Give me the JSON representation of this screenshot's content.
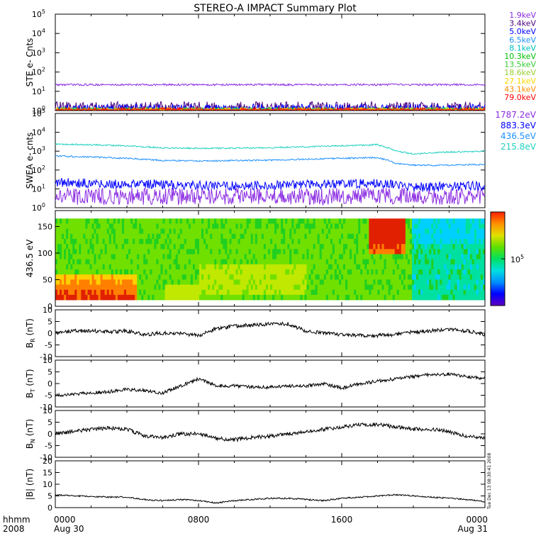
{
  "title": "STEREO-A IMPACT Summary Plot",
  "time_axis": {
    "label_top": "hhmm",
    "label_bottom": "2008",
    "ticks": [
      {
        "t": 0,
        "top": "0000",
        "bottom": "Aug 30"
      },
      {
        "t": 8,
        "top": "0800",
        "bottom": ""
      },
      {
        "t": 16,
        "top": "1600",
        "bottom": ""
      },
      {
        "t": 24,
        "top": "0000",
        "bottom": "Aug 31"
      }
    ]
  },
  "side_stamp": "Tue Dec 13 08:30:41 2008",
  "chart_data": [
    {
      "type": "line",
      "panel": "ste",
      "ylabel": "STE e- Cnts",
      "yscale": "log",
      "ylim": [
        1,
        100000
      ],
      "yticks": [
        {
          "v": 1,
          "base": "10",
          "exp": "0"
        },
        {
          "v": 10,
          "base": "10",
          "exp": "1"
        },
        {
          "v": 100,
          "base": "10",
          "exp": "2"
        },
        {
          "v": 1000,
          "base": "10",
          "exp": "3"
        },
        {
          "v": 10000,
          "base": "10",
          "exp": "4"
        },
        {
          "v": 100000,
          "base": "10",
          "exp": "5"
        }
      ],
      "legend_position": "right",
      "series": [
        {
          "name": "1.9keV",
          "color": "#8a2be2",
          "level": 22,
          "noise": 0.05
        },
        {
          "name": "3.4keV",
          "color": "#4b0082",
          "level": 1.3,
          "noise": 0.35
        },
        {
          "name": "5.0keV",
          "color": "#0000ff",
          "level": 1.1,
          "noise": 0.3
        },
        {
          "name": "6.5keV",
          "color": "#1e90ff",
          "level": 0.9,
          "noise": 0.2
        },
        {
          "name": "8.1keV",
          "color": "#00bfbf",
          "level": 0.9,
          "noise": 0.2
        },
        {
          "name": "10.3keV",
          "color": "#00c000",
          "level": 0.9,
          "noise": 0.2
        },
        {
          "name": "13.5keV",
          "color": "#32cd32",
          "level": 0.9,
          "noise": 0.2
        },
        {
          "name": "18.6keV",
          "color": "#9acd32",
          "level": 0.9,
          "noise": 0.2
        },
        {
          "name": "27.1keV",
          "color": "#ffd700",
          "level": 0.9,
          "noise": 0.2
        },
        {
          "name": "43.1keV",
          "color": "#ff8c00",
          "level": 0.9,
          "noise": 0.2
        },
        {
          "name": "79.0keV",
          "color": "#ff0000",
          "level": 0.9,
          "noise": 0.2
        }
      ]
    },
    {
      "type": "line",
      "panel": "swea",
      "ylabel": "SWEA e- cnts",
      "yscale": "log",
      "ylim": [
        1,
        100000
      ],
      "yticks": [
        {
          "v": 1,
          "base": "10",
          "exp": "0"
        },
        {
          "v": 10,
          "base": "10",
          "exp": "1"
        },
        {
          "v": 100,
          "base": "10",
          "exp": "2"
        },
        {
          "v": 1000,
          "base": "10",
          "exp": "3"
        },
        {
          "v": 10000,
          "base": "10",
          "exp": "4"
        },
        {
          "v": 100000,
          "base": "10",
          "exp": "5"
        }
      ],
      "legend_position": "right",
      "series": [
        {
          "name": "1787.2eV",
          "color": "#8a2be2",
          "x": [
            0,
            6,
            12,
            18,
            24
          ],
          "y": [
            4,
            4,
            4,
            4,
            4
          ],
          "noise": 0.45
        },
        {
          "name": "883.3eV",
          "color": "#0000ff",
          "x": [
            0,
            4,
            8,
            12,
            16,
            18,
            20,
            24
          ],
          "y": [
            22,
            18,
            15,
            15,
            18,
            20,
            12,
            15
          ],
          "noise": 0.25
        },
        {
          "name": "436.5eV",
          "color": "#1e90ff",
          "x": [
            0,
            4,
            6,
            8,
            12,
            16,
            18,
            19,
            20,
            22,
            24
          ],
          "y": [
            550,
            420,
            320,
            300,
            330,
            420,
            450,
            220,
            180,
            180,
            200
          ],
          "noise": 0.04
        },
        {
          "name": "215.8eV",
          "color": "#20d0c0",
          "x": [
            0,
            4,
            6,
            8,
            12,
            16,
            18,
            19,
            20,
            22,
            24
          ],
          "y": [
            2400,
            1900,
            1500,
            1400,
            1500,
            1900,
            2200,
            1000,
            700,
            900,
            1000
          ],
          "noise": 0.04
        }
      ]
    },
    {
      "type": "heatmap",
      "panel": "pad",
      "ylabel": "436.5 eV",
      "yticks": [
        0,
        50,
        100,
        150
      ],
      "ylim": [
        0,
        180
      ],
      "colorbar_label": "10",
      "colorbar_exp": "5"
    },
    {
      "type": "line",
      "panel": "br",
      "ylabel": "BR (nT)",
      "ylabel_main": "B",
      "ylabel_sub": "R",
      "ylabel_unit": "(nT)",
      "ylim": [
        -10,
        10
      ],
      "yticks": [
        -10,
        -5,
        0,
        5,
        10
      ],
      "x": [
        0,
        1,
        2,
        3,
        4,
        5,
        6,
        7,
        8,
        9,
        10,
        11,
        12,
        13,
        14,
        15,
        16,
        17,
        18,
        19,
        20,
        21,
        22,
        23,
        24
      ],
      "y": [
        0,
        1,
        1,
        0.5,
        1,
        -0.5,
        0,
        0,
        -1,
        2,
        3,
        3.5,
        4,
        4,
        1,
        0,
        -0.5,
        -1,
        -1,
        -0.5,
        0.5,
        1,
        1.5,
        1,
        -0.5
      ],
      "noise": 0.8
    },
    {
      "type": "line",
      "panel": "bt",
      "ylabel": "BT (nT)",
      "ylabel_main": "B",
      "ylabel_sub": "T",
      "ylabel_unit": "(nT)",
      "ylim": [
        -10,
        10
      ],
      "yticks": [
        -10,
        -5,
        0,
        5,
        10
      ],
      "x": [
        0,
        1,
        2,
        3,
        4,
        5,
        6,
        7,
        8,
        9,
        10,
        11,
        12,
        13,
        14,
        15,
        16,
        17,
        18,
        19,
        20,
        21,
        22,
        23,
        24
      ],
      "y": [
        -5,
        -4.5,
        -4,
        -3.5,
        -2.5,
        -3,
        -4,
        -1,
        2,
        -1,
        -1,
        -1.5,
        -1.5,
        -1,
        -1,
        0,
        -2,
        0,
        1,
        2,
        3,
        4,
        4,
        3,
        2
      ],
      "noise": 0.7
    },
    {
      "type": "line",
      "panel": "bn",
      "ylabel": "BN (nT)",
      "ylabel_main": "B",
      "ylabel_sub": "N",
      "ylabel_unit": "(nT)",
      "ylim": [
        -10,
        10
      ],
      "yticks": [
        -10,
        -5,
        0,
        5,
        10
      ],
      "x": [
        0,
        1,
        2,
        3,
        4,
        5,
        6,
        7,
        8,
        9,
        10,
        11,
        12,
        13,
        14,
        15,
        16,
        17,
        18,
        19,
        20,
        21,
        22,
        23,
        24
      ],
      "y": [
        0,
        1,
        2,
        2.5,
        2,
        -1,
        -1.5,
        0,
        0,
        -2,
        -2.5,
        -1.5,
        -1,
        0,
        1,
        2,
        3,
        4,
        4,
        3,
        2,
        2,
        1,
        -1,
        -2
      ],
      "noise": 0.8
    },
    {
      "type": "line",
      "panel": "bmag",
      "ylabel": "|B| (nT)",
      "ylim": [
        0,
        20
      ],
      "yticks": [
        0,
        5,
        10,
        15,
        20
      ],
      "x": [
        0,
        1,
        2,
        3,
        4,
        5,
        6,
        7,
        8,
        9,
        10,
        11,
        12,
        13,
        14,
        15,
        16,
        17,
        18,
        19,
        20,
        21,
        22,
        23,
        24
      ],
      "y": [
        5.5,
        5,
        4.8,
        4.5,
        4.5,
        3.5,
        3,
        3.5,
        3,
        2,
        3,
        3.5,
        4,
        4,
        3.5,
        3,
        4,
        4.5,
        5,
        5.5,
        5,
        4.5,
        4,
        3.5,
        2.5
      ],
      "noise": 0.3
    }
  ]
}
